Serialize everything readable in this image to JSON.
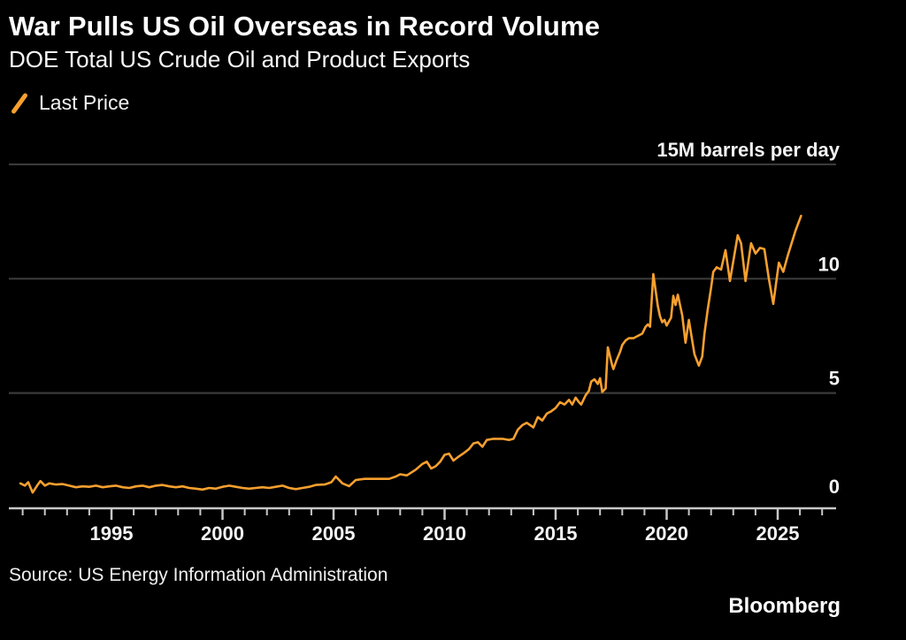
{
  "header": {
    "title": "War Pulls US Oil Overseas in Record Volume",
    "subtitle": "DOE Total US Crude Oil and Product Exports"
  },
  "legend": {
    "label": "Last Price",
    "marker": "slash-icon"
  },
  "footer": {
    "source": "Source: US Energy Information Administration",
    "brand": "Bloomberg"
  },
  "colors": {
    "background": "#000000",
    "line": "#F7A02F",
    "grid": "#3A3A3A",
    "axis": "#C8C8C8",
    "tick_text": "#F3F3F3"
  },
  "chart_data": {
    "type": "line",
    "title": "War Pulls US Oil Overseas in Record Volume",
    "subtitle": "DOE Total US Crude Oil and Product Exports",
    "unit": "M barrels per day",
    "xlim": [
      1990.4,
      2027.7
    ],
    "ylim": [
      0,
      15
    ],
    "grid": "horizontal-only",
    "legend_position": "top-left",
    "y_ticks": [
      {
        "value": 15,
        "label": "15M barrels per day"
      },
      {
        "value": 10,
        "label": "10"
      },
      {
        "value": 5,
        "label": "5"
      },
      {
        "value": 0,
        "label": "0"
      }
    ],
    "x_ticks_major": [
      {
        "value": 1995,
        "label": "1995"
      },
      {
        "value": 2000,
        "label": "2000"
      },
      {
        "value": 2005,
        "label": "2005"
      },
      {
        "value": 2010,
        "label": "2010"
      },
      {
        "value": 2015,
        "label": "2015"
      },
      {
        "value": 2020,
        "label": "2020"
      },
      {
        "value": 2025,
        "label": "2025"
      }
    ],
    "x_minor_tick_interval": 1,
    "series": [
      {
        "name": "Last Price",
        "color": "#F7A02F",
        "points": [
          [
            1990.9,
            1.05
          ],
          [
            1991.1,
            0.95
          ],
          [
            1991.25,
            1.1
          ],
          [
            1991.45,
            0.65
          ],
          [
            1991.65,
            0.95
          ],
          [
            1991.8,
            1.15
          ],
          [
            1992.0,
            0.95
          ],
          [
            1992.2,
            1.05
          ],
          [
            1992.5,
            1.0
          ],
          [
            1992.8,
            1.02
          ],
          [
            1993.1,
            0.95
          ],
          [
            1993.4,
            0.88
          ],
          [
            1993.7,
            0.92
          ],
          [
            1994.0,
            0.9
          ],
          [
            1994.3,
            0.95
          ],
          [
            1994.6,
            0.88
          ],
          [
            1994.9,
            0.92
          ],
          [
            1995.2,
            0.95
          ],
          [
            1995.5,
            0.88
          ],
          [
            1995.8,
            0.85
          ],
          [
            1996.1,
            0.92
          ],
          [
            1996.4,
            0.95
          ],
          [
            1996.7,
            0.88
          ],
          [
            1997.0,
            0.95
          ],
          [
            1997.3,
            0.98
          ],
          [
            1997.6,
            0.92
          ],
          [
            1997.9,
            0.88
          ],
          [
            1998.2,
            0.92
          ],
          [
            1998.5,
            0.85
          ],
          [
            1998.8,
            0.82
          ],
          [
            1999.1,
            0.78
          ],
          [
            1999.4,
            0.85
          ],
          [
            1999.7,
            0.82
          ],
          [
            2000.0,
            0.9
          ],
          [
            2000.3,
            0.95
          ],
          [
            2000.6,
            0.9
          ],
          [
            2000.9,
            0.85
          ],
          [
            2001.2,
            0.82
          ],
          [
            2001.5,
            0.85
          ],
          [
            2001.8,
            0.88
          ],
          [
            2002.1,
            0.85
          ],
          [
            2002.4,
            0.9
          ],
          [
            2002.7,
            0.95
          ],
          [
            2003.0,
            0.85
          ],
          [
            2003.3,
            0.8
          ],
          [
            2003.6,
            0.85
          ],
          [
            2003.9,
            0.9
          ],
          [
            2004.2,
            0.98
          ],
          [
            2004.6,
            1.0
          ],
          [
            2004.9,
            1.1
          ],
          [
            2005.1,
            1.35
          ],
          [
            2005.4,
            1.05
          ],
          [
            2005.7,
            0.93
          ],
          [
            2006.0,
            1.2
          ],
          [
            2006.4,
            1.25
          ],
          [
            2006.8,
            1.25
          ],
          [
            2007.2,
            1.25
          ],
          [
            2007.5,
            1.25
          ],
          [
            2007.8,
            1.35
          ],
          [
            2008.0,
            1.45
          ],
          [
            2008.3,
            1.4
          ],
          [
            2008.7,
            1.65
          ],
          [
            2009.0,
            1.9
          ],
          [
            2009.2,
            2.0
          ],
          [
            2009.4,
            1.7
          ],
          [
            2009.6,
            1.8
          ],
          [
            2009.8,
            2.0
          ],
          [
            2010.0,
            2.3
          ],
          [
            2010.2,
            2.35
          ],
          [
            2010.4,
            2.05
          ],
          [
            2010.6,
            2.2
          ],
          [
            2010.9,
            2.4
          ],
          [
            2011.1,
            2.55
          ],
          [
            2011.3,
            2.8
          ],
          [
            2011.5,
            2.85
          ],
          [
            2011.7,
            2.65
          ],
          [
            2011.9,
            2.95
          ],
          [
            2012.2,
            3.0
          ],
          [
            2012.6,
            3.0
          ],
          [
            2012.9,
            2.95
          ],
          [
            2013.1,
            3.0
          ],
          [
            2013.3,
            3.4
          ],
          [
            2013.5,
            3.6
          ],
          [
            2013.7,
            3.7
          ],
          [
            2014.0,
            3.5
          ],
          [
            2014.2,
            3.95
          ],
          [
            2014.4,
            3.8
          ],
          [
            2014.6,
            4.1
          ],
          [
            2014.8,
            4.2
          ],
          [
            2015.0,
            4.35
          ],
          [
            2015.2,
            4.6
          ],
          [
            2015.4,
            4.5
          ],
          [
            2015.6,
            4.7
          ],
          [
            2015.75,
            4.5
          ],
          [
            2015.9,
            4.8
          ],
          [
            2016.05,
            4.6
          ],
          [
            2016.15,
            4.5
          ],
          [
            2016.35,
            4.9
          ],
          [
            2016.5,
            5.1
          ],
          [
            2016.6,
            5.5
          ],
          [
            2016.75,
            5.6
          ],
          [
            2016.9,
            5.4
          ],
          [
            2017.0,
            5.65
          ],
          [
            2017.1,
            5.05
          ],
          [
            2017.25,
            5.2
          ],
          [
            2017.35,
            7.0
          ],
          [
            2017.55,
            6.2
          ],
          [
            2017.6,
            6.05
          ],
          [
            2017.75,
            6.45
          ],
          [
            2017.9,
            6.8
          ],
          [
            2018.0,
            7.1
          ],
          [
            2018.15,
            7.3
          ],
          [
            2018.3,
            7.4
          ],
          [
            2018.5,
            7.4
          ],
          [
            2018.7,
            7.5
          ],
          [
            2018.9,
            7.6
          ],
          [
            2019.05,
            7.9
          ],
          [
            2019.15,
            8.0
          ],
          [
            2019.25,
            7.9
          ],
          [
            2019.4,
            10.2
          ],
          [
            2019.6,
            8.8
          ],
          [
            2019.7,
            8.35
          ],
          [
            2019.8,
            8.1
          ],
          [
            2019.9,
            8.2
          ],
          [
            2020.0,
            7.95
          ],
          [
            2020.2,
            8.3
          ],
          [
            2020.3,
            9.25
          ],
          [
            2020.4,
            8.85
          ],
          [
            2020.5,
            9.3
          ],
          [
            2020.7,
            8.4
          ],
          [
            2020.85,
            7.2
          ],
          [
            2021.0,
            8.2
          ],
          [
            2021.1,
            7.6
          ],
          [
            2021.25,
            6.7
          ],
          [
            2021.45,
            6.2
          ],
          [
            2021.6,
            6.6
          ],
          [
            2021.7,
            7.6
          ],
          [
            2021.85,
            8.65
          ],
          [
            2022.0,
            9.6
          ],
          [
            2022.1,
            10.3
          ],
          [
            2022.25,
            10.5
          ],
          [
            2022.45,
            10.4
          ],
          [
            2022.65,
            11.25
          ],
          [
            2022.85,
            9.9
          ],
          [
            2023.2,
            11.9
          ],
          [
            2023.35,
            11.55
          ],
          [
            2023.55,
            9.9
          ],
          [
            2023.8,
            11.55
          ],
          [
            2024.0,
            11.1
          ],
          [
            2024.2,
            11.35
          ],
          [
            2024.4,
            11.3
          ],
          [
            2024.6,
            10.0
          ],
          [
            2024.8,
            8.9
          ],
          [
            2025.05,
            10.7
          ],
          [
            2025.25,
            10.3
          ],
          [
            2025.45,
            11.0
          ],
          [
            2025.8,
            12.1
          ],
          [
            2026.05,
            12.75
          ]
        ]
      }
    ]
  }
}
